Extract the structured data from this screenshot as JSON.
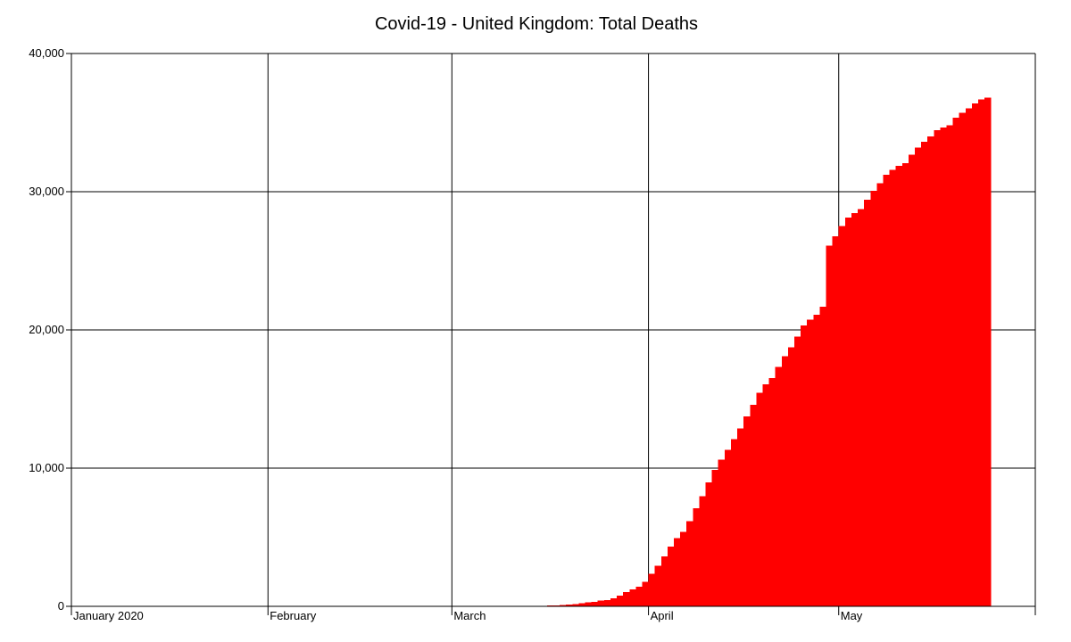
{
  "chart_data": {
    "type": "bar",
    "title": "Covid-19 - United Kingdom: Total Deaths",
    "xlabel": "",
    "ylabel": "",
    "x_range": [
      "2020-01-01",
      "2020-06-01"
    ],
    "ylim": [
      0,
      40000
    ],
    "y_ticks": [
      {
        "value": 0,
        "label": "0"
      },
      {
        "value": 10000,
        "label": "10,000"
      },
      {
        "value": 20000,
        "label": "20,000"
      },
      {
        "value": 30000,
        "label": "30,000"
      },
      {
        "value": 40000,
        "label": "40,000"
      }
    ],
    "x_ticks": [
      {
        "date": "2020-01-01",
        "label": "January 2020"
      },
      {
        "date": "2020-02-01",
        "label": "February"
      },
      {
        "date": "2020-03-01",
        "label": "March"
      },
      {
        "date": "2020-04-01",
        "label": "April"
      },
      {
        "date": "2020-05-01",
        "label": "May"
      },
      {
        "date": "2020-06-01",
        "label": ""
      }
    ],
    "grid": true,
    "bar_color": "#ff0000",
    "series": [
      {
        "x": [
          "2020-03-01",
          "2020-03-02",
          "2020-03-03",
          "2020-03-04",
          "2020-03-05",
          "2020-03-06",
          "2020-03-07",
          "2020-03-08",
          "2020-03-09",
          "2020-03-10",
          "2020-03-11",
          "2020-03-12",
          "2020-03-13",
          "2020-03-14",
          "2020-03-15",
          "2020-03-16",
          "2020-03-17",
          "2020-03-18",
          "2020-03-19",
          "2020-03-20",
          "2020-03-21",
          "2020-03-22",
          "2020-03-23",
          "2020-03-24",
          "2020-03-25",
          "2020-03-26",
          "2020-03-27",
          "2020-03-28",
          "2020-03-29",
          "2020-03-30",
          "2020-03-31",
          "2020-04-01",
          "2020-04-02",
          "2020-04-03",
          "2020-04-04",
          "2020-04-05",
          "2020-04-06",
          "2020-04-07",
          "2020-04-08",
          "2020-04-09",
          "2020-04-10",
          "2020-04-11",
          "2020-04-12",
          "2020-04-13",
          "2020-04-14",
          "2020-04-15",
          "2020-04-16",
          "2020-04-17",
          "2020-04-18",
          "2020-04-19",
          "2020-04-20",
          "2020-04-21",
          "2020-04-22",
          "2020-04-23",
          "2020-04-24",
          "2020-04-25",
          "2020-04-26",
          "2020-04-27",
          "2020-04-28",
          "2020-04-29",
          "2020-04-30",
          "2020-05-01",
          "2020-05-02",
          "2020-05-03",
          "2020-05-04",
          "2020-05-05",
          "2020-05-06",
          "2020-05-07",
          "2020-05-08",
          "2020-05-09",
          "2020-05-10",
          "2020-05-11",
          "2020-05-12",
          "2020-05-13",
          "2020-05-14",
          "2020-05-15",
          "2020-05-16",
          "2020-05-17",
          "2020-05-18",
          "2020-05-19",
          "2020-05-20",
          "2020-05-21",
          "2020-05-22",
          "2020-05-23",
          "2020-05-24"
        ],
        "values": [
          0,
          0,
          0,
          0,
          1,
          1,
          2,
          3,
          4,
          6,
          8,
          10,
          10,
          21,
          35,
          55,
          71,
          104,
          144,
          177,
          233,
          281,
          335,
          422,
          465,
          578,
          759,
          1019,
          1228,
          1408,
          1789,
          2352,
          2921,
          3605,
          4313,
          4934,
          5373,
          6159,
          7097,
          7978,
          8958,
          9875,
          10612,
          11329,
          12107,
          12868,
          13729,
          14576,
          15464,
          16060,
          16509,
          17337,
          18100,
          18738,
          19506,
          20319,
          20732,
          21092,
          21678,
          26097,
          26771,
          27510,
          28131,
          28446,
          28734,
          29427,
          30076,
          30615,
          31241,
          31587,
          31855,
          32065,
          32692,
          33186,
          33614,
          33998,
          34466,
          34636,
          34796,
          35341,
          35704,
          36042,
          36393,
          36675,
          36793
        ]
      }
    ]
  }
}
